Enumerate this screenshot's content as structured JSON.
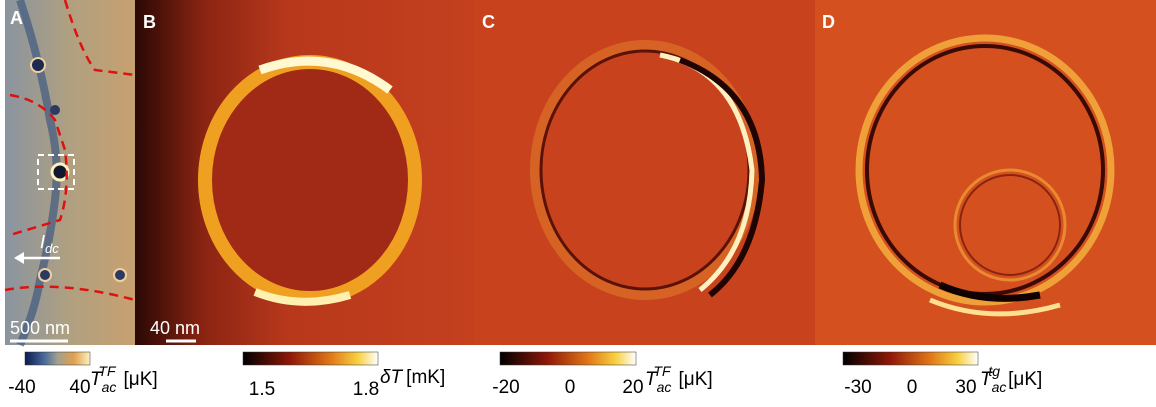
{
  "panels": [
    {
      "label": "A",
      "scale_bar": "500 nm",
      "current": {
        "symbol": "I",
        "sub": "dc"
      },
      "colorbar": {
        "ticks": [
          "-40",
          "40"
        ],
        "symbol": "T",
        "sub": "ac",
        "sup": "TF",
        "unit": "[μK]"
      }
    },
    {
      "label": "B",
      "scale_bar": "40 nm",
      "colorbar": {
        "ticks": [
          "1.5",
          "1.8"
        ],
        "symbol": "δT",
        "unit": "[mK]"
      }
    },
    {
      "label": "C",
      "colorbar": {
        "ticks": [
          "-20",
          "0",
          "20"
        ],
        "symbol": "T",
        "sub": "ac",
        "sup": "TF",
        "unit": "[μK]"
      }
    },
    {
      "label": "D",
      "colorbar": {
        "ticks": [
          "-30",
          "0",
          "30"
        ],
        "symbol": "T",
        "sub": "ac",
        "sup": "tg",
        "unit": "[μK]"
      }
    }
  ]
}
